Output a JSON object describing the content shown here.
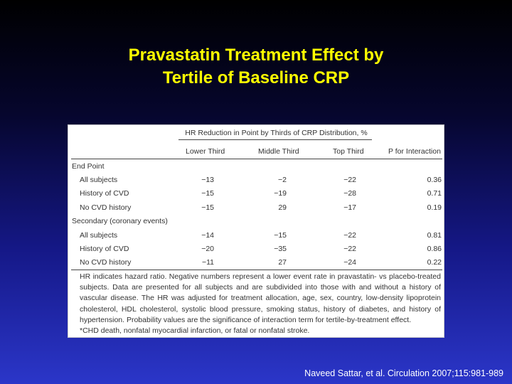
{
  "slide": {
    "title_line1": "Pravastatin Treatment Effect by",
    "title_line2": "Tertile of Baseline CRP",
    "citation": "Naveed Sattar, et al. Circulation 2007;115:981-989"
  },
  "table": {
    "group_header": "HR Reduction in Point by Thirds of CRP Distribution, %",
    "columns": [
      "Lower Third",
      "Middle Third",
      "Top Third",
      "P for Interaction"
    ],
    "section1": "End Point",
    "section1_rows": [
      {
        "label": "All subjects",
        "lower": "−13",
        "middle": "−2",
        "top": "−22",
        "p": "0.36"
      },
      {
        "label": "History of CVD",
        "lower": "−15",
        "middle": "−19",
        "top": "−28",
        "p": "0.71"
      },
      {
        "label": "No CVD history",
        "lower": "−15",
        "middle": "29",
        "top": "−17",
        "p": "0.19"
      }
    ],
    "section2": "Secondary (coronary events)",
    "section2_rows": [
      {
        "label": "All subjects",
        "lower": "−14",
        "middle": "−15",
        "top": "−22",
        "p": "0.81"
      },
      {
        "label": "History of CVD",
        "lower": "−20",
        "middle": "−35",
        "top": "−22",
        "p": "0.86"
      },
      {
        "label": "No CVD history",
        "lower": "−11",
        "middle": "27",
        "top": "−24",
        "p": "0.22"
      }
    ],
    "footnote_main": "HR indicates hazard ratio. Negative numbers represent a lower event rate in pravastatin- vs placebo-treated subjects. Data are presented for all subjects and are subdivided into those with and without a history of vascular disease. The HR was adjusted for treatment allocation, age, sex, country, low-density lipoprotein cholesterol, HDL cholesterol, systolic blood pressure, smoking status, history of diabetes, and history of hypertension. Probability values are the significance of interaction term for tertile-by-treatment effect.",
    "footnote_star": "*CHD death, nonfatal myocardial infarction, or fatal or nonfatal stroke."
  }
}
